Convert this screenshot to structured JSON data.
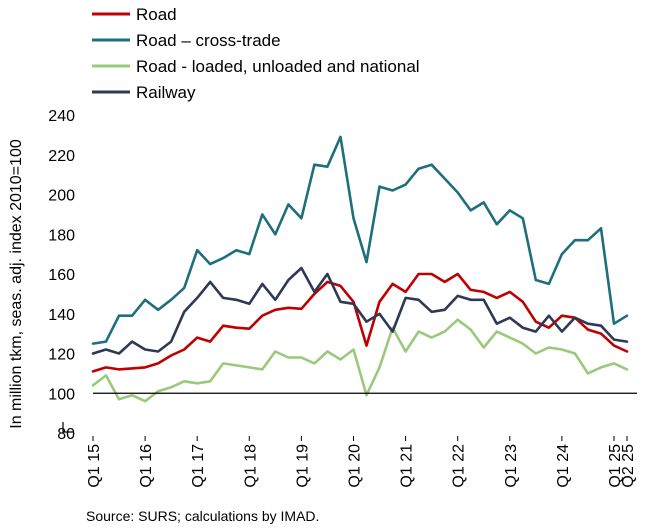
{
  "chart_data": {
    "type": "line",
    "ylabel": "In million tkm, seas. adj. index 2010=100",
    "ylim": [
      80,
      240
    ],
    "yticks": [
      80,
      100,
      120,
      140,
      160,
      180,
      200,
      220,
      240
    ],
    "reference_line": 100,
    "legend_position": "top-left",
    "x_tick_labels": [
      "Q1 15",
      "Q1 16",
      "Q1 17",
      "Q1 18",
      "Q1 19",
      "Q1 20",
      "Q1 21",
      "Q1 22",
      "Q1 23",
      "Q1 24",
      "Q1 25",
      "Q2 25"
    ],
    "x_tick_index": [
      0,
      4,
      8,
      12,
      16,
      20,
      24,
      28,
      32,
      36,
      40,
      41
    ],
    "source": "Source: SURS; calculations by IMAD.",
    "series": [
      {
        "name": "Road",
        "color": "#c00000",
        "values": [
          111,
          113,
          112,
          112.5,
          113,
          115,
          119,
          122,
          128,
          126,
          134,
          133,
          132.5,
          139,
          142,
          143,
          142.5,
          150,
          156,
          154,
          146,
          124,
          146,
          155,
          151,
          160,
          160,
          156,
          160,
          152,
          151,
          148,
          151,
          146,
          136,
          133,
          139,
          138,
          132,
          130,
          124,
          121
        ]
      },
      {
        "name": "Road – cross-trade",
        "color": "#1f6e7e",
        "values": [
          125,
          126,
          139,
          139,
          147,
          142,
          147,
          153,
          172,
          165,
          168,
          172,
          170,
          190,
          180,
          195,
          188,
          215,
          214,
          229,
          188,
          166,
          204,
          202,
          205,
          213,
          215,
          208,
          201,
          192,
          196,
          185,
          192,
          188,
          157,
          155,
          170,
          177,
          177,
          183,
          135,
          139
        ]
      },
      {
        "name": "Road - loaded, unloaded and national",
        "color": "#9bc97b",
        "values": [
          104,
          109,
          97,
          99,
          96,
          101,
          103,
          106,
          105,
          106,
          115,
          114,
          113,
          112,
          121,
          118,
          118,
          115,
          121,
          117,
          122,
          99,
          113,
          133,
          121,
          131,
          128,
          131,
          137,
          132,
          123,
          131,
          128,
          125,
          120,
          123,
          122,
          120,
          110,
          113,
          115,
          112
        ]
      },
      {
        "name": "Railway",
        "color": "#2e3a55",
        "values": [
          120,
          122,
          120,
          126,
          122,
          121,
          126,
          141,
          148,
          156,
          148,
          147,
          145,
          155,
          147,
          157,
          163,
          151,
          160,
          146,
          145,
          136,
          140,
          131,
          148,
          147,
          141,
          142,
          149,
          147,
          147,
          135,
          138,
          133,
          131,
          139,
          131,
          138,
          135,
          134,
          127,
          126
        ]
      }
    ]
  }
}
